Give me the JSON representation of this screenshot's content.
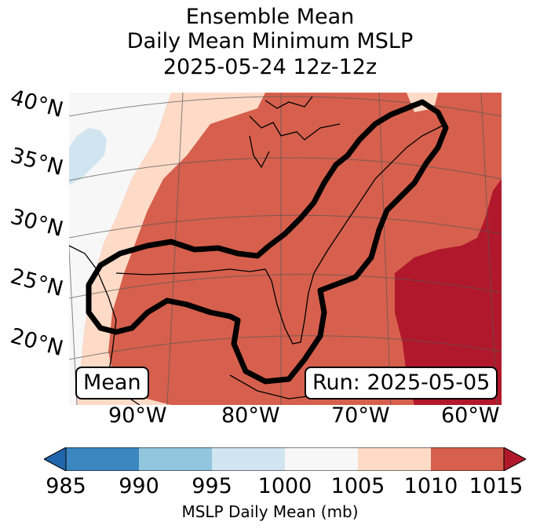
{
  "title": {
    "line1": "Ensemble Mean",
    "line2": "Daily Mean Minimum MSLP",
    "line3": "2025-05-24 12z-12z"
  },
  "map": {
    "lat_labels": [
      "40°N",
      "35°N",
      "30°N",
      "25°N",
      "20°N"
    ],
    "lon_labels": [
      "90°W",
      "80°W",
      "70°W",
      "60°W"
    ],
    "box_left": "Mean",
    "box_right": "Run: 2025-05-05",
    "colors": {
      "c985": "#2f79b5",
      "c990": "#8ec1dd",
      "c995": "#cde3ef",
      "c1000": "#f6f6f6",
      "c1005": "#fcdac7",
      "c1010": "#d6604d",
      "c1015": "#b2182b",
      "ocean_hi": "#b2182b"
    }
  },
  "colorbar": {
    "ticks": [
      "985",
      "990",
      "995",
      "1000",
      "1005",
      "1010",
      "1015"
    ],
    "label": "MSLP Daily Mean (mb)",
    "bins": [
      {
        "from": 985,
        "to": 990,
        "color": "#3b88c0"
      },
      {
        "from": 990,
        "to": 995,
        "color": "#92c5de"
      },
      {
        "from": 995,
        "to": 1000,
        "color": "#d1e5f0"
      },
      {
        "from": 1000,
        "to": 1005,
        "color": "#f7f7f7"
      },
      {
        "from": 1005,
        "to": 1010,
        "color": "#fddbc7"
      },
      {
        "from": 1010,
        "to": 1015,
        "color": "#d6604d"
      }
    ],
    "under_color": "#2166ac",
    "over_color": "#b2182b"
  }
}
